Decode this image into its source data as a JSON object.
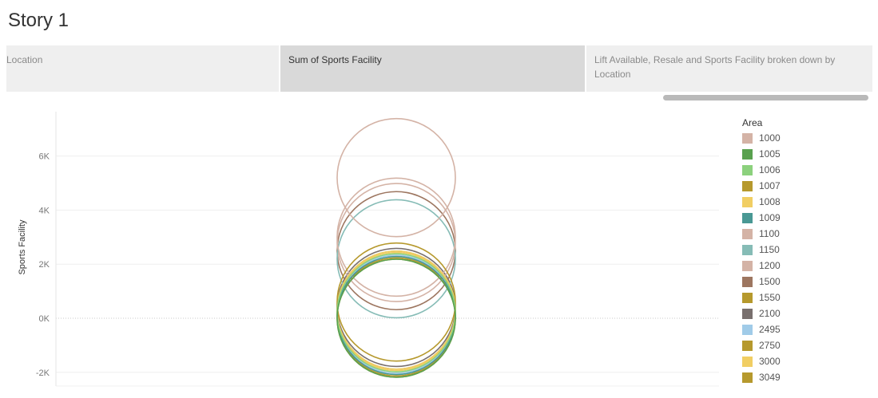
{
  "story": {
    "title": "Story 1",
    "tabs": [
      {
        "label": "Location"
      },
      {
        "label": "Sum of Sports Facility"
      },
      {
        "label": "Lift Available, Resale and Sports Facility broken down by Location"
      }
    ]
  },
  "chart_data": {
    "type": "scatter",
    "mark": "circle",
    "ylabel": "Sports Facility",
    "xlabel": "",
    "ylim": [
      -2500,
      7500
    ],
    "yticks": [
      -2000,
      0,
      2000,
      4000,
      6000
    ],
    "ytick_labels": [
      "-2K",
      "0K",
      "2K",
      "4K",
      "6K"
    ],
    "grid": true,
    "legend": {
      "title": "Area",
      "placement": "right"
    },
    "series": [
      {
        "name": "1000",
        "color": "#d4b3a6",
        "values": [
          5200
        ]
      },
      {
        "name": "1005",
        "color": "#59a14f",
        "values": [
          0
        ]
      },
      {
        "name": "1006",
        "color": "#8cd17d",
        "values": [
          200
        ]
      },
      {
        "name": "1007",
        "color": "#b6992d",
        "values": [
          600
        ]
      },
      {
        "name": "1008",
        "color": "#f1ce63",
        "values": [
          300
        ]
      },
      {
        "name": "1009",
        "color": "#499894",
        "values": [
          100
        ]
      },
      {
        "name": "1100",
        "color": "#d4b3a6",
        "values": [
          3000
        ]
      },
      {
        "name": "1150",
        "color": "#86bcb6",
        "values": [
          2200
        ]
      },
      {
        "name": "1200",
        "color": "#d4b3a6",
        "values": [
          2800
        ]
      },
      {
        "name": "1500",
        "color": "#9d7660",
        "values": [
          2500
        ]
      },
      {
        "name": "1550",
        "color": "#b6992d",
        "values": [
          300
        ]
      },
      {
        "name": "2100",
        "color": "#79706e",
        "values": [
          400
        ]
      },
      {
        "name": "2495",
        "color": "#a0cbe8",
        "values": [
          150
        ]
      },
      {
        "name": "2750",
        "color": "#b6992d",
        "values": [
          50
        ]
      },
      {
        "name": "3000",
        "color": "#f1ce63",
        "values": [
          250
        ]
      },
      {
        "name": "3049",
        "color": "#b6992d",
        "values": [
          0
        ]
      }
    ]
  }
}
